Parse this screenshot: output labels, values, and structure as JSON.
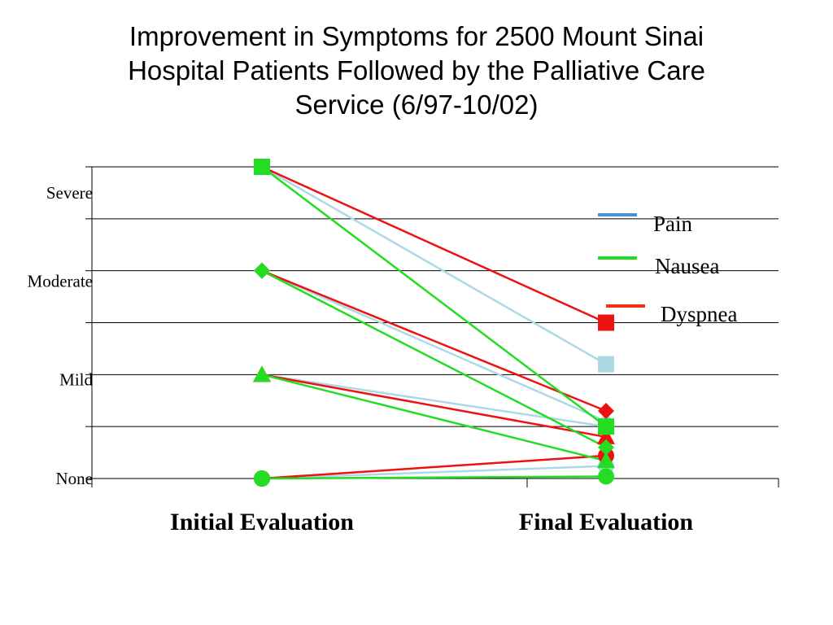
{
  "title_lines": [
    "Improvement in Symptoms for 2500 Mount Sinai",
    "Hospital Patients Followed by the Palliative Care",
    "Service (6/97-10/02)"
  ],
  "chart_data": {
    "type": "line",
    "title": "Improvement in Symptoms for 2500 Mount Sinai Hospital Patients Followed by the Palliative Care Service (6/97-10/02)",
    "categories": [
      "Initial Evaluation",
      "Final Evaluation"
    ],
    "y_tick_labels": [
      {
        "label": "Severe",
        "value": 2.75
      },
      {
        "label": "Moderate",
        "value": 1.9
      },
      {
        "label": "Mild",
        "value": 0.95
      },
      {
        "label": "None",
        "value": 0
      }
    ],
    "ylim": [
      0,
      3
    ],
    "grid": true,
    "legend": {
      "placement": "right",
      "entries": [
        {
          "label": "Pain",
          "color": "#4a90d9"
        },
        {
          "label": "Nausea",
          "color": "#22dd22"
        },
        {
          "label": "Dyspnea",
          "color": "#ee3311"
        }
      ]
    },
    "series": [
      {
        "symptom": "Pain",
        "marker": "square",
        "color": "#add8e6",
        "values": [
          3.0,
          1.1
        ]
      },
      {
        "symptom": "Pain",
        "marker": "diamond",
        "color": "#add8e6",
        "values": [
          2.0,
          0.55
        ]
      },
      {
        "symptom": "Pain",
        "marker": "triangle",
        "color": "#add8e6",
        "values": [
          1.0,
          0.5
        ]
      },
      {
        "symptom": "Pain",
        "marker": "circle",
        "color": "#add8e6",
        "values": [
          0.0,
          0.12
        ]
      },
      {
        "symptom": "Nausea",
        "marker": "square",
        "color": "#22dd22",
        "values": [
          3.0,
          0.5
        ]
      },
      {
        "symptom": "Nausea",
        "marker": "diamond",
        "color": "#22dd22",
        "values": [
          2.0,
          0.3
        ]
      },
      {
        "symptom": "Nausea",
        "marker": "triangle",
        "color": "#22dd22",
        "values": [
          1.0,
          0.17
        ]
      },
      {
        "symptom": "Nausea",
        "marker": "circle",
        "color": "#22dd22",
        "values": [
          0.0,
          0.02
        ]
      },
      {
        "symptom": "Dyspnea",
        "marker": "square",
        "color": "#ee1111",
        "values": [
          3.0,
          1.5
        ]
      },
      {
        "symptom": "Dyspnea",
        "marker": "diamond",
        "color": "#ee1111",
        "values": [
          2.0,
          0.65
        ]
      },
      {
        "symptom": "Dyspnea",
        "marker": "triangle",
        "color": "#ee1111",
        "values": [
          1.0,
          0.4
        ]
      },
      {
        "symptom": "Dyspnea",
        "marker": "circle",
        "color": "#ee1111",
        "values": [
          0.0,
          0.22
        ]
      }
    ]
  }
}
